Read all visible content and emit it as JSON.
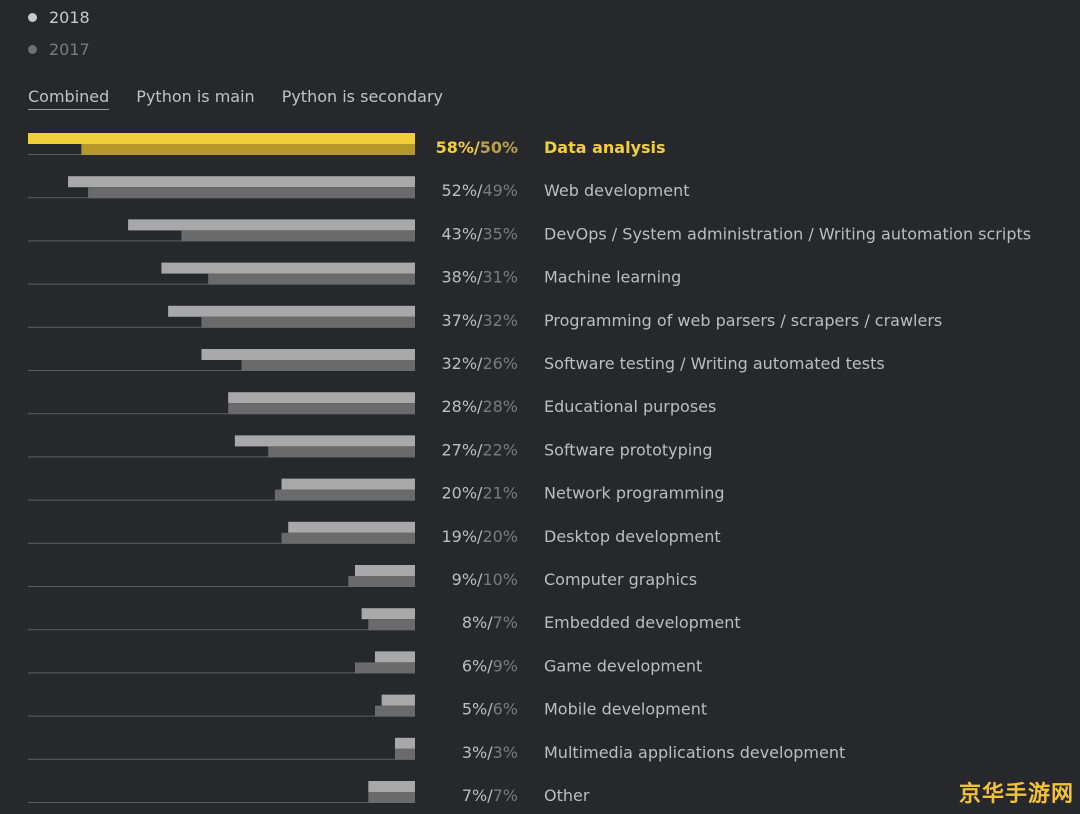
{
  "legend": [
    {
      "label": "2018",
      "color": "#c8c8c8"
    },
    {
      "label": "2017",
      "color": "#6f6f6f"
    }
  ],
  "tabs": [
    {
      "label": "Combined",
      "active": true
    },
    {
      "label": "Python is main",
      "active": false
    },
    {
      "label": "Python is secondary",
      "active": false
    }
  ],
  "colors": {
    "bar_2018": "#a8a8a8",
    "bar_2017": "#6a6a6a",
    "highlight_2018": "#f2cf3a",
    "highlight_2017": "#b59a2b",
    "baseline": "#5d5d5d",
    "label": "#bdbdbd",
    "value_2017": "#7a7a7a",
    "highlight_text": "#f2cf3a",
    "highlight_text_2017": "#b9a04a"
  },
  "chart_data": {
    "type": "bar",
    "orientation": "horizontal",
    "xlim": [
      0,
      60
    ],
    "grid": false,
    "legend_position": "top-left",
    "series": [
      {
        "name": "2018",
        "values": [
          58,
          52,
          43,
          38,
          37,
          32,
          28,
          27,
          20,
          19,
          9,
          8,
          6,
          5,
          3,
          7
        ]
      },
      {
        "name": "2017",
        "values": [
          50,
          49,
          35,
          31,
          32,
          26,
          28,
          22,
          21,
          20,
          10,
          7,
          9,
          6,
          3,
          7
        ]
      }
    ],
    "categories": [
      "Data analysis",
      "Web development",
      "DevOps / System administration / Writing automation scripts",
      "Machine learning",
      "Programming of web parsers / scrapers / crawlers",
      "Software testing / Writing automated tests",
      "Educational purposes",
      "Software prototyping",
      "Network programming",
      "Desktop development",
      "Computer graphics",
      "Embedded development",
      "Game development",
      "Mobile development",
      "Multimedia applications development",
      "Other"
    ],
    "value_labels_2018": [
      "58%/",
      "52%/",
      "43%/",
      "38%/",
      "37%/",
      "32%/",
      "28%/",
      "27%/",
      "20%/",
      "19%/",
      "9%/",
      "8%/",
      "6%/",
      "5%/",
      "3%/",
      "7%/"
    ],
    "value_labels_2017": [
      "50%",
      "49%",
      "35%",
      "31%",
      "32%",
      "26%",
      "28%",
      "22%",
      "21%",
      "20%",
      "10%",
      "7%",
      "9%",
      "6%",
      "3%",
      "7%"
    ],
    "highlighted_index": 0
  },
  "watermark": "京华手游网"
}
